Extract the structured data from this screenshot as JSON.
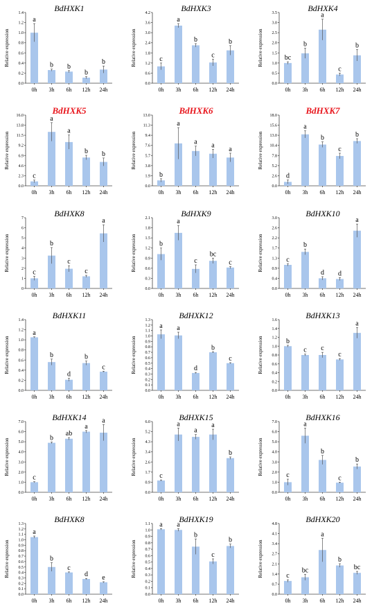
{
  "figure": {
    "ylabel": "Relative expression",
    "bar_color": "#a9c6ec",
    "highlight_color": "#e8161d"
  },
  "chart_data": [
    {
      "type": "bar",
      "title": "BdHXK1",
      "highlight": false,
      "categories": [
        "0h",
        "3h",
        "6h",
        "12h",
        "24h"
      ],
      "values": [
        1.0,
        0.26,
        0.23,
        0.11,
        0.27
      ],
      "errors": [
        0.18,
        0.02,
        0.02,
        0.02,
        0.07
      ],
      "letters": [
        "a",
        "b",
        "b",
        "b",
        "b"
      ],
      "ylabel": "Relative expression",
      "ylim": [
        0,
        1.4
      ],
      "yticks": [
        "0.0",
        "0.2",
        "0.4",
        "0.6",
        "0.8",
        "1.0",
        "1.2",
        "1.4"
      ]
    },
    {
      "type": "bar",
      "title": "BdHXK3",
      "highlight": false,
      "categories": [
        "0h",
        "3h",
        "6h",
        "12h",
        "24h"
      ],
      "values": [
        1.0,
        3.42,
        2.25,
        1.23,
        1.95
      ],
      "errors": [
        0.2,
        0.12,
        0.1,
        0.2,
        0.28
      ],
      "letters": [
        "c",
        "a",
        "b",
        "c",
        "b"
      ],
      "ylabel": "Relative expression",
      "ylim": [
        0,
        4.2
      ],
      "yticks": [
        "0.0",
        "0.6",
        "1.2",
        "1.8",
        "2.4",
        "3.0",
        "3.6",
        "4.2"
      ]
    },
    {
      "type": "bar",
      "title": "BdHXK4",
      "highlight": false,
      "categories": [
        "0h",
        "3h",
        "6h",
        "12h",
        "24h"
      ],
      "values": [
        1.0,
        1.48,
        2.65,
        0.43,
        1.38
      ],
      "errors": [
        0.06,
        0.25,
        0.52,
        0.07,
        0.28
      ],
      "letters": [
        "bc",
        "b",
        "a",
        "c",
        "b"
      ],
      "ylabel": "Relative expression",
      "ylim": [
        0,
        3.5
      ],
      "yticks": [
        "0.0",
        "0.5",
        "1.0",
        "1.5",
        "2.0",
        "2.5",
        "3.0",
        "3.5"
      ]
    },
    {
      "type": "bar",
      "title": "BdHXK5",
      "highlight": true,
      "categories": [
        "0h",
        "3h",
        "6h",
        "12h",
        "24h"
      ],
      "values": [
        1.0,
        12.2,
        9.9,
        6.4,
        5.4
      ],
      "errors": [
        0.3,
        2.1,
        1.6,
        0.5,
        0.9
      ],
      "letters": [
        "c",
        "a",
        "a",
        "b",
        "b"
      ],
      "ylabel": "Relative expression",
      "ylim": [
        0,
        16
      ],
      "yticks": [
        "0.0",
        "2.3",
        "4.6",
        "6.9",
        "9.2",
        "11.5",
        "13.8",
        "16.0"
      ]
    },
    {
      "type": "bar",
      "title": "BdHXK6",
      "highlight": true,
      "categories": [
        "0h",
        "3h",
        "6h",
        "12h",
        "24h"
      ],
      "values": [
        1.0,
        7.8,
        6.4,
        5.9,
        5.2
      ],
      "errors": [
        0.3,
        2.9,
        0.9,
        0.8,
        0.8
      ],
      "letters": [
        "b",
        "a",
        "a",
        "a",
        "a"
      ],
      "ylabel": "Relative expression",
      "ylim": [
        0,
        13
      ],
      "yticks": [
        "0.0",
        "1.9",
        "3.8",
        "5.7",
        "7.6",
        "9.4",
        "11.3",
        "13.0"
      ]
    },
    {
      "type": "bar",
      "title": "BdHXK7",
      "highlight": true,
      "categories": [
        "0h",
        "3h",
        "6h",
        "12h",
        "24h"
      ],
      "values": [
        1.0,
        13.1,
        10.5,
        7.6,
        11.4
      ],
      "errors": [
        0.5,
        0.9,
        0.7,
        0.7,
        0.6
      ],
      "letters": [
        "d",
        "a",
        "b",
        "c",
        "b"
      ],
      "ylabel": "Relative expression",
      "ylim": [
        0,
        18
      ],
      "yticks": [
        "0.0",
        "2.6",
        "5.2",
        "7.8",
        "10.4",
        "13.0",
        "15.6",
        "18.0"
      ]
    },
    {
      "type": "bar",
      "title": "BdHXK8",
      "highlight": false,
      "categories": [
        "0h",
        "3h",
        "6h",
        "12h",
        "24h"
      ],
      "values": [
        1.0,
        3.25,
        1.95,
        1.2,
        5.45
      ],
      "errors": [
        0.2,
        0.8,
        0.3,
        0.1,
        0.85
      ],
      "letters": [
        "c",
        "b",
        "c",
        "c",
        "a"
      ],
      "ylabel": "Relative expression",
      "ylim": [
        0,
        7
      ],
      "yticks": [
        "0",
        "1",
        "2",
        "3",
        "4",
        "5",
        "6",
        "7"
      ]
    },
    {
      "type": "bar",
      "title": "BdHXK9",
      "highlight": false,
      "categories": [
        "0h",
        "3h",
        "6h",
        "12h",
        "24h"
      ],
      "values": [
        1.02,
        1.65,
        0.58,
        0.82,
        0.62
      ],
      "errors": [
        0.18,
        0.22,
        0.12,
        0.08,
        0.03
      ],
      "letters": [
        "b",
        "a",
        "c",
        "bc",
        "c"
      ],
      "ylabel": "Relative expression",
      "ylim": [
        0,
        2.1
      ],
      "yticks": [
        "0.0",
        "0.3",
        "0.6",
        "0.9",
        "1.2",
        "1.5",
        "1.8",
        "2.1"
      ]
    },
    {
      "type": "bar",
      "title": "BdHXK10",
      "highlight": false,
      "categories": [
        "0h",
        "3h",
        "6h",
        "12h",
        "24h"
      ],
      "values": [
        1.0,
        1.55,
        0.43,
        0.4,
        2.45
      ],
      "errors": [
        0.05,
        0.12,
        0.07,
        0.06,
        0.28
      ],
      "letters": [
        "c",
        "b",
        "d",
        "d",
        "a"
      ],
      "ylabel": "Relative expression",
      "ylim": [
        0,
        3
      ],
      "yticks": [
        "0.0",
        "0.4",
        "0.9",
        "1.3",
        "1.7",
        "2.2",
        "2.6",
        "3.0"
      ]
    },
    {
      "type": "bar",
      "title": "BdHXK11",
      "highlight": false,
      "categories": [
        "0h",
        "3h",
        "6h",
        "12h",
        "24h"
      ],
      "values": [
        1.05,
        0.56,
        0.21,
        0.54,
        0.37
      ],
      "errors": [
        0.01,
        0.06,
        0.03,
        0.04,
        0.01
      ],
      "letters": [
        "a",
        "b",
        "d",
        "b",
        "c"
      ],
      "ylabel": "Relative expression",
      "ylim": [
        0,
        1.4
      ],
      "yticks": [
        "0.0",
        "0.2",
        "0.4",
        "0.6",
        "0.8",
        "1.0",
        "1.2",
        "1.4"
      ]
    },
    {
      "type": "bar",
      "title": "BdHXK12",
      "highlight": false,
      "categories": [
        "0h",
        "3h",
        "6h",
        "12h",
        "24h"
      ],
      "values": [
        1.03,
        1.01,
        0.32,
        0.7,
        0.5
      ],
      "errors": [
        0.08,
        0.06,
        0.01,
        0.01,
        0.01
      ],
      "letters": [
        "a",
        "a",
        "d",
        "b",
        "c"
      ],
      "ylabel": "Relative expression",
      "ylim": [
        0,
        1.3
      ],
      "yticks": [
        "0.0",
        "0.1",
        "0.2",
        "0.3",
        "0.4",
        "0.5",
        "0.6",
        "0.7",
        "0.8",
        "0.9",
        "1.0",
        "1.1",
        "1.2",
        "1.3"
      ]
    },
    {
      "type": "bar",
      "title": "BdHXK13",
      "highlight": false,
      "categories": [
        "0h",
        "3h",
        "6h",
        "12h",
        "24h"
      ],
      "values": [
        1.0,
        0.8,
        0.8,
        0.7,
        1.3
      ],
      "errors": [
        0.02,
        0.02,
        0.06,
        0.02,
        0.12
      ],
      "letters": [
        "b",
        "c",
        "c",
        "c",
        "a"
      ],
      "ylabel": "Relative expression",
      "ylim": [
        0,
        1.6
      ],
      "yticks": [
        "0.0",
        "0.2",
        "0.4",
        "0.6",
        "0.8",
        "1.0",
        "1.2",
        "1.4",
        "1.6"
      ]
    },
    {
      "type": "bar",
      "title": "BdHXK14",
      "highlight": false,
      "categories": [
        "0h",
        "3h",
        "6h",
        "12h",
        "24h"
      ],
      "values": [
        1.0,
        4.9,
        5.3,
        6.0,
        5.9
      ],
      "errors": [
        0.05,
        0.08,
        0.12,
        0.12,
        0.8
      ],
      "letters": [
        "c",
        "b",
        "ab",
        "a",
        "a"
      ],
      "ylabel": "Relative expression",
      "ylim": [
        0,
        7
      ],
      "yticks": [
        "0.0",
        "1.0",
        "2.0",
        "3.0",
        "4.0",
        "5.0",
        "6.0",
        "7.0"
      ]
    },
    {
      "type": "bar",
      "title": "BdHXK15",
      "highlight": false,
      "categories": [
        "0h",
        "3h",
        "6h",
        "12h",
        "24h"
      ],
      "values": [
        1.0,
        4.9,
        4.7,
        4.9,
        2.9
      ],
      "errors": [
        0.05,
        0.55,
        0.2,
        0.45,
        0.1
      ],
      "letters": [
        "c",
        "a",
        "a",
        "a",
        "b"
      ],
      "ylabel": "Relative expression",
      "ylim": [
        0,
        6
      ],
      "yticks": [
        "0.0",
        "0.9",
        "1.7",
        "2.6",
        "3.4",
        "4.3",
        "5.2",
        "6.0"
      ]
    },
    {
      "type": "bar",
      "title": "BdHXK16",
      "highlight": false,
      "categories": [
        "0h",
        "3h",
        "6h",
        "12h",
        "24h"
      ],
      "values": [
        1.0,
        5.6,
        3.2,
        0.95,
        2.55
      ],
      "errors": [
        0.3,
        0.75,
        0.45,
        0.05,
        0.25
      ],
      "letters": [
        "c",
        "a",
        "b",
        "c",
        "b"
      ],
      "ylabel": "Relative expression",
      "ylim": [
        0,
        7
      ],
      "yticks": [
        "0.0",
        "1.0",
        "2.0",
        "3.0",
        "4.0",
        "5.0",
        "6.0",
        "7.0"
      ]
    },
    {
      "type": "bar",
      "title": "BdHXK8",
      "highlight": false,
      "categories": [
        "0h",
        "3h",
        "6h",
        "12h",
        "24h"
      ],
      "values": [
        1.05,
        0.5,
        0.4,
        0.28,
        0.22
      ],
      "errors": [
        0.02,
        0.08,
        0.01,
        0.01,
        0.01
      ],
      "letters": [
        "a",
        "b",
        "c",
        "d",
        "e"
      ],
      "ylabel": "Relative expression",
      "ylim": [
        0,
        1.3
      ],
      "yticks": [
        "0.0",
        "0.1",
        "0.2",
        "0.3",
        "0.4",
        "0.5",
        "0.6",
        "0.7",
        "0.8",
        "0.9",
        "1.0",
        "1.1",
        "1.2",
        "1.3"
      ]
    },
    {
      "type": "bar",
      "title": "BdHXK19",
      "highlight": false,
      "categories": [
        "0h",
        "3h",
        "6h",
        "12h",
        "24h"
      ],
      "values": [
        1.01,
        1.0,
        0.74,
        0.51,
        0.75
      ],
      "errors": [
        0.01,
        0.02,
        0.12,
        0.04,
        0.03
      ],
      "letters": [
        "a",
        "a",
        "b",
        "c",
        "b"
      ],
      "ylabel": "Relative expression",
      "ylim": [
        0,
        1.1
      ],
      "yticks": [
        "0.0",
        "0.1",
        "0.2",
        "0.3",
        "0.4",
        "0.5",
        "0.6",
        "0.7",
        "0.8",
        "0.9",
        "1.0",
        "1.1"
      ]
    },
    {
      "type": "bar",
      "title": "BdHXK20",
      "highlight": false,
      "categories": [
        "0h",
        "3h",
        "6h",
        "12h",
        "24h"
      ],
      "values": [
        0.9,
        1.15,
        3.0,
        1.95,
        1.45
      ],
      "errors": [
        0.08,
        0.2,
        0.8,
        0.12,
        0.1
      ],
      "letters": [
        "c",
        "bc",
        "a",
        "b",
        "bc"
      ],
      "ylabel": "Relative expression",
      "ylim": [
        0,
        4.8
      ],
      "yticks": [
        "0.0",
        "0.7",
        "1.4",
        "2.1",
        "2.7",
        "3.4",
        "4.1",
        "4.8"
      ]
    }
  ]
}
